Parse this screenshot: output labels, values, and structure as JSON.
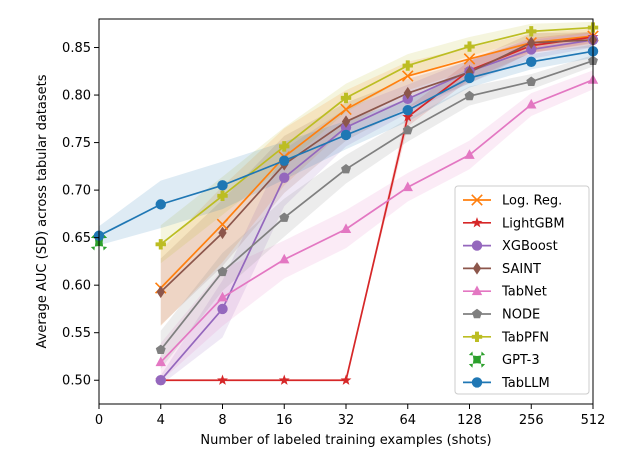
{
  "chart_data": {
    "type": "line",
    "title": "",
    "xlabel": "Number of labeled training examples (shots)",
    "ylabel": "Average AUC (SD) across tabular datasets",
    "x_categories": [
      "0",
      "4",
      "8",
      "16",
      "32",
      "64",
      "128",
      "256",
      "512"
    ],
    "x_scale": "categorical (log2 shots, 0 as first position)",
    "ylim": [
      0.475,
      0.88
    ],
    "yticks": [
      "0.50",
      "0.55",
      "0.60",
      "0.65",
      "0.70",
      "0.75",
      "0.80",
      "0.85"
    ],
    "grid": false,
    "legend_position": "lower-right",
    "series": [
      {
        "name": "Log. Reg.",
        "color": "#ff7f0e",
        "marker": "x",
        "x": [
          "4",
          "8",
          "16",
          "32",
          "64",
          "128",
          "256",
          "512"
        ],
        "values": [
          0.597,
          0.664,
          0.735,
          0.785,
          0.82,
          0.838,
          0.855,
          0.862
        ],
        "sd": [
          0.04,
          0.04,
          0.03,
          0.02,
          0.015,
          0.012,
          0.01,
          0.008
        ]
      },
      {
        "name": "LightGBM",
        "color": "#d62728",
        "marker": "star",
        "x": [
          "4",
          "8",
          "16",
          "32",
          "64",
          "128",
          "256",
          "512"
        ],
        "values": [
          0.5,
          0.5,
          0.5,
          0.5,
          0.777,
          0.826,
          0.852,
          0.861
        ],
        "sd": [
          0,
          0,
          0,
          0,
          0.01,
          0.01,
          0.008,
          0.006
        ]
      },
      {
        "name": "XGBoost",
        "color": "#9467bd",
        "marker": "circle",
        "x": [
          "4",
          "8",
          "16",
          "32",
          "64",
          "128",
          "256",
          "512"
        ],
        "values": [
          0.5,
          0.575,
          0.713,
          0.766,
          0.796,
          0.825,
          0.848,
          0.858
        ],
        "sd": [
          0.005,
          0.03,
          0.03,
          0.02,
          0.015,
          0.012,
          0.01,
          0.008
        ]
      },
      {
        "name": "SAINT",
        "color": "#8c564b",
        "marker": "diamond",
        "x": [
          "4",
          "8",
          "16",
          "32",
          "64",
          "128",
          "256",
          "512"
        ],
        "values": [
          0.593,
          0.655,
          0.727,
          0.772,
          0.802,
          0.824,
          0.855,
          0.858
        ],
        "sd": [
          0.035,
          0.035,
          0.03,
          0.02,
          0.015,
          0.012,
          0.01,
          0.008
        ]
      },
      {
        "name": "TabNet",
        "color": "#e377c2",
        "marker": "triangle",
        "x": [
          "4",
          "8",
          "16",
          "32",
          "64",
          "128",
          "256",
          "512"
        ],
        "values": [
          0.519,
          0.587,
          0.627,
          0.659,
          0.703,
          0.737,
          0.79,
          0.816
        ],
        "sd": [
          0.02,
          0.03,
          0.02,
          0.02,
          0.015,
          0.015,
          0.012,
          0.01
        ]
      },
      {
        "name": "NODE",
        "color": "#7f7f7f",
        "marker": "pentagon",
        "x": [
          "4",
          "8",
          "16",
          "32",
          "64",
          "128",
          "256",
          "512"
        ],
        "values": [
          0.532,
          0.614,
          0.671,
          0.722,
          0.763,
          0.799,
          0.814,
          0.836
        ],
        "sd": [
          0.02,
          0.02,
          0.02,
          0.015,
          0.012,
          0.01,
          0.008,
          0.006
        ]
      },
      {
        "name": "TabPFN",
        "color": "#bcbd22",
        "marker": "plus",
        "x": [
          "4",
          "8",
          "16",
          "32",
          "64",
          "128",
          "256",
          "512"
        ],
        "values": [
          0.643,
          0.694,
          0.746,
          0.797,
          0.831,
          0.851,
          0.867,
          0.871
        ],
        "sd": [
          0.02,
          0.02,
          0.02,
          0.015,
          0.012,
          0.01,
          0.008,
          0.006
        ]
      },
      {
        "name": "GPT-3",
        "color": "#2ca02c",
        "marker": "bigx",
        "x": [
          "0"
        ],
        "values": [
          0.645
        ],
        "sd": [
          0
        ]
      },
      {
        "name": "TabLLM",
        "color": "#1f77b4",
        "marker": "circle",
        "x": [
          "0",
          "4",
          "8",
          "16",
          "32",
          "64",
          "128",
          "256",
          "512"
        ],
        "values": [
          0.652,
          0.685,
          0.705,
          0.731,
          0.758,
          0.784,
          0.818,
          0.835,
          0.846
        ],
        "sd": [
          0.01,
          0.025,
          0.025,
          0.02,
          0.015,
          0.012,
          0.01,
          0.008,
          0.007
        ]
      }
    ]
  }
}
